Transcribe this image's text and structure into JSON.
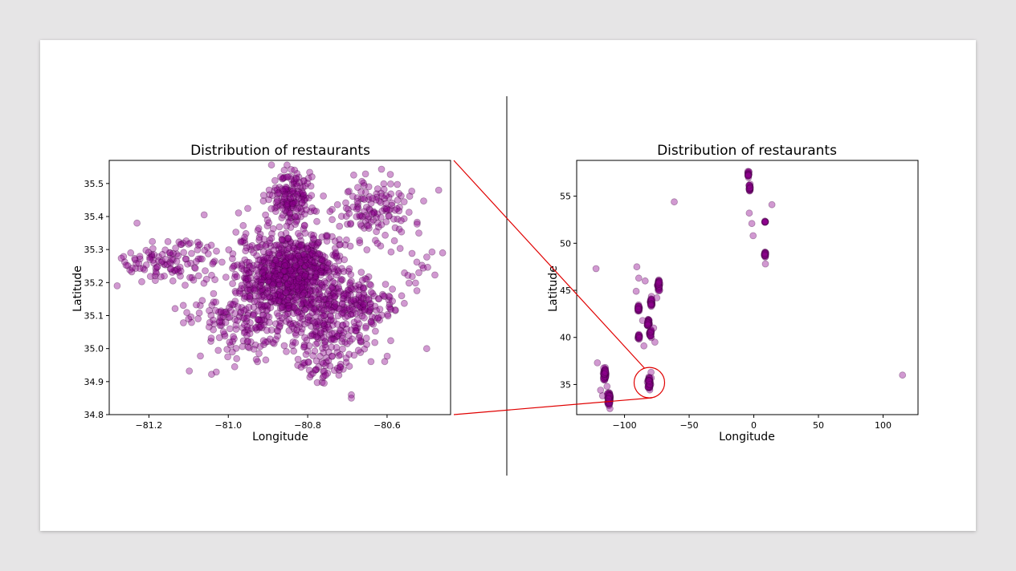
{
  "chart_data": [
    {
      "type": "scatter",
      "title": "Distribution of restaurants",
      "xlabel": "Longitude",
      "ylabel": "Latitude",
      "xlim": [
        -81.3,
        -80.44
      ],
      "ylim": [
        34.8,
        35.57
      ],
      "xticks": [
        -81.2,
        -81.0,
        -80.8,
        -80.6
      ],
      "xtick_labels": [
        "−81.2",
        "−81.0",
        "−80.8",
        "−80.6"
      ],
      "yticks": [
        34.8,
        34.9,
        35.0,
        35.1,
        35.2,
        35.3,
        35.4,
        35.5
      ],
      "ytick_labels": [
        "34.8",
        "34.9",
        "35.0",
        "35.1",
        "35.2",
        "35.3",
        "35.4",
        "35.5"
      ],
      "grid": false,
      "marker_color": "#8b008b",
      "marker_edge": "#3a003a",
      "marker_alpha": 0.4,
      "clusters": [
        {
          "x": -80.84,
          "y": 35.22,
          "sx": 0.07,
          "sy": 0.07,
          "n": 900
        },
        {
          "x": -80.84,
          "y": 35.46,
          "sx": 0.03,
          "sy": 0.04,
          "n": 160
        },
        {
          "x": -80.63,
          "y": 35.43,
          "sx": 0.05,
          "sy": 0.05,
          "n": 130
        },
        {
          "x": -81.15,
          "y": 35.26,
          "sx": 0.07,
          "sy": 0.03,
          "n": 120
        },
        {
          "x": -80.74,
          "y": 35.06,
          "sx": 0.06,
          "sy": 0.05,
          "n": 170
        },
        {
          "x": -80.95,
          "y": 35.05,
          "sx": 0.05,
          "sy": 0.05,
          "n": 120
        },
        {
          "x": -80.66,
          "y": 35.14,
          "sx": 0.05,
          "sy": 0.04,
          "n": 120
        },
        {
          "x": -80.76,
          "y": 34.95,
          "sx": 0.03,
          "sy": 0.03,
          "n": 40
        },
        {
          "x": -81.05,
          "y": 35.11,
          "sx": 0.04,
          "sy": 0.02,
          "n": 30
        },
        {
          "x": -80.52,
          "y": 35.25,
          "sx": 0.02,
          "sy": 0.03,
          "n": 14
        }
      ],
      "points": [
        {
          "x": -81.28,
          "y": 35.19
        },
        {
          "x": -81.23,
          "y": 35.38
        },
        {
          "x": -80.69,
          "y": 34.86
        },
        {
          "x": -80.69,
          "y": 34.85
        },
        {
          "x": -80.5,
          "y": 35.0
        },
        {
          "x": -80.47,
          "y": 35.48
        },
        {
          "x": -80.46,
          "y": 35.29
        },
        {
          "x": -80.52,
          "y": 35.23
        },
        {
          "x": -80.52,
          "y": 35.35
        },
        {
          "x": -81.1,
          "y": 35.09
        }
      ]
    },
    {
      "type": "scatter",
      "title": "Distribution of restaurants",
      "xlabel": "Longitude",
      "ylabel": "Latitude",
      "xlim": [
        -137,
        127
      ],
      "ylim": [
        31.8,
        58.8
      ],
      "xticks": [
        -100,
        -50,
        0,
        50,
        100
      ],
      "xtick_labels": [
        "−100",
        "−50",
        "0",
        "50",
        "100"
      ],
      "yticks": [
        35,
        40,
        45,
        50,
        55
      ],
      "ytick_labels": [
        "35",
        "40",
        "45",
        "50",
        "55"
      ],
      "grid": false,
      "marker_color": "#8b008b",
      "marker_edge": "#3a003a",
      "marker_alpha": 0.4,
      "clusters": [
        {
          "x": -115.2,
          "y": 36.1,
          "sx": 0.5,
          "sy": 0.3,
          "n": 60
        },
        {
          "x": -111.9,
          "y": 33.5,
          "sx": 0.5,
          "sy": 0.3,
          "n": 80
        },
        {
          "x": -80.8,
          "y": 35.2,
          "sx": 0.5,
          "sy": 0.3,
          "n": 60
        },
        {
          "x": -89.4,
          "y": 43.1,
          "sx": 0.4,
          "sy": 0.2,
          "n": 25
        },
        {
          "x": -89.0,
          "y": 40.1,
          "sx": 0.4,
          "sy": 0.2,
          "n": 20
        },
        {
          "x": -81.7,
          "y": 41.5,
          "sx": 0.4,
          "sy": 0.2,
          "n": 35
        },
        {
          "x": -80.0,
          "y": 40.4,
          "sx": 0.4,
          "sy": 0.2,
          "n": 30
        },
        {
          "x": -79.4,
          "y": 43.7,
          "sx": 0.4,
          "sy": 0.2,
          "n": 40
        },
        {
          "x": -73.6,
          "y": 45.5,
          "sx": 0.4,
          "sy": 0.3,
          "n": 45
        },
        {
          "x": -3.2,
          "y": 55.9,
          "sx": 0.3,
          "sy": 0.15,
          "n": 30
        },
        {
          "x": -4.2,
          "y": 57.3,
          "sx": 0.3,
          "sy": 0.15,
          "n": 20
        },
        {
          "x": 8.7,
          "y": 48.8,
          "sx": 0.3,
          "sy": 0.15,
          "n": 25
        },
        {
          "x": 8.7,
          "y": 52.3,
          "sx": 0.2,
          "sy": 0.1,
          "n": 8
        }
      ],
      "points": [
        {
          "x": -122,
          "y": 47.3
        },
        {
          "x": -121,
          "y": 37.3
        },
        {
          "x": -118.5,
          "y": 34.4
        },
        {
          "x": -117,
          "y": 33.8
        },
        {
          "x": -113.5,
          "y": 34.8
        },
        {
          "x": -90.5,
          "y": 47.5
        },
        {
          "x": -91,
          "y": 44.9
        },
        {
          "x": -89,
          "y": 46.3
        },
        {
          "x": -84,
          "y": 46.0
        },
        {
          "x": -86,
          "y": 41.8
        },
        {
          "x": -85,
          "y": 39.1
        },
        {
          "x": -76.5,
          "y": 39.5
        },
        {
          "x": -75,
          "y": 44.2
        },
        {
          "x": -77.5,
          "y": 41.0
        },
        {
          "x": -79.5,
          "y": 36.3
        },
        {
          "x": -61.5,
          "y": 54.4
        },
        {
          "x": -3.5,
          "y": 53.2
        },
        {
          "x": -1.5,
          "y": 52.1
        },
        {
          "x": -0.5,
          "y": 50.8
        },
        {
          "x": 14,
          "y": 54.1
        },
        {
          "x": 9,
          "y": 47.8
        },
        {
          "x": 115,
          "y": 36.0
        }
      ]
    }
  ]
}
